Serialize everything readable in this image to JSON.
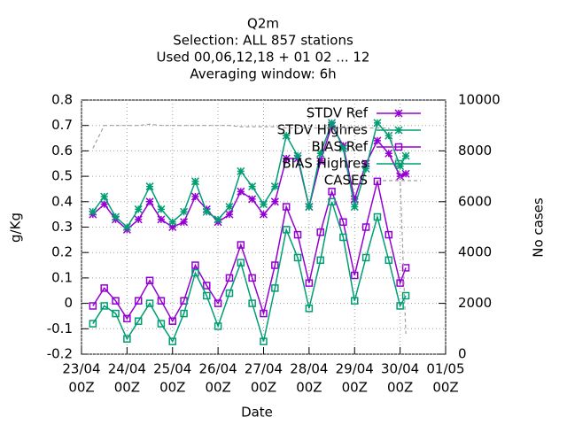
{
  "chart_data": {
    "type": "line",
    "title": [
      "Q2m",
      "Selection: ALL    857 stations",
      "Used  00,06,12,18 + 01 02 ... 12",
      "Averaging window:  6h"
    ],
    "xlabel": "Date",
    "ylabel": "g/Kg",
    "y2label": "No cases",
    "x": [
      6,
      12,
      18,
      24,
      30,
      36,
      42,
      48,
      54,
      60,
      66,
      72,
      78,
      84,
      90,
      96,
      102,
      108,
      114,
      120,
      126,
      132,
      138,
      144,
      150,
      156,
      162,
      168,
      171
    ],
    "xlim": [
      0,
      192
    ],
    "xticks": [
      {
        "value": 0,
        "label": [
          "23/04",
          "00Z"
        ]
      },
      {
        "value": 24,
        "label": [
          "24/04",
          "00Z"
        ]
      },
      {
        "value": 48,
        "label": [
          "25/04",
          "00Z"
        ]
      },
      {
        "value": 72,
        "label": [
          "26/04",
          "00Z"
        ]
      },
      {
        "value": 96,
        "label": [
          "27/04",
          "00Z"
        ]
      },
      {
        "value": 120,
        "label": [
          "28/04",
          "00Z"
        ]
      },
      {
        "value": 144,
        "label": [
          "29/04",
          "00Z"
        ]
      },
      {
        "value": 168,
        "label": [
          "30/04",
          "00Z"
        ]
      },
      {
        "value": 192,
        "label": [
          "01/05",
          "00Z"
        ]
      }
    ],
    "ylim": [
      -0.2,
      0.8
    ],
    "yticks": [
      -0.2,
      -0.1,
      0,
      0.1,
      0.2,
      0.3,
      0.4,
      0.5,
      0.6,
      0.7,
      0.8
    ],
    "y2lim": [
      0,
      10000
    ],
    "y2ticks": [
      0,
      2000,
      4000,
      6000,
      8000,
      10000
    ],
    "grid": true,
    "legend": "top-right",
    "series": [
      {
        "name": "STDV Ref",
        "color": "#9400d3",
        "marker": "star",
        "values": [
          0.35,
          0.39,
          0.33,
          0.29,
          0.33,
          0.4,
          0.33,
          0.3,
          0.32,
          0.42,
          0.37,
          0.32,
          0.35,
          0.44,
          0.41,
          0.35,
          0.4,
          0.57,
          0.57,
          0.38,
          0.56,
          0.7,
          0.62,
          0.41,
          0.55,
          0.64,
          0.59,
          0.5,
          0.51
        ]
      },
      {
        "name": "STDV Highres",
        "color": "#009e73",
        "marker": "star",
        "values": [
          0.36,
          0.42,
          0.34,
          0.3,
          0.37,
          0.46,
          0.37,
          0.32,
          0.36,
          0.48,
          0.36,
          0.33,
          0.38,
          0.52,
          0.46,
          0.39,
          0.46,
          0.66,
          0.58,
          0.38,
          0.59,
          0.71,
          0.61,
          0.38,
          0.53,
          0.71,
          0.66,
          0.54,
          0.58
        ]
      },
      {
        "name": "BIAS Ref",
        "color": "#9400d3",
        "marker": "square",
        "values": [
          -0.01,
          0.06,
          0.01,
          -0.06,
          0.01,
          0.09,
          0.01,
          -0.07,
          0.01,
          0.15,
          0.07,
          0.0,
          0.1,
          0.23,
          0.1,
          -0.04,
          0.15,
          0.38,
          0.27,
          0.08,
          0.28,
          0.44,
          0.32,
          0.11,
          0.3,
          0.48,
          0.27,
          0.08,
          0.14
        ]
      },
      {
        "name": "BIAS Highres",
        "color": "#009e73",
        "marker": "square",
        "values": [
          -0.08,
          -0.01,
          -0.04,
          -0.14,
          -0.07,
          0.0,
          -0.08,
          -0.15,
          -0.04,
          0.12,
          0.03,
          -0.09,
          0.04,
          0.16,
          0.0,
          -0.15,
          0.06,
          0.29,
          0.18,
          -0.02,
          0.17,
          0.4,
          0.26,
          0.01,
          0.18,
          0.34,
          0.17,
          -0.01,
          0.03
        ]
      },
      {
        "name": "CASES",
        "color": "#a0a0a0",
        "marker": "none",
        "dash": true,
        "axis": "y2",
        "values": [
          8100,
          9000,
          9000,
          9000,
          9000,
          9050,
          9000,
          9000,
          9000,
          9000,
          9000,
          9000,
          9000,
          8950,
          8950,
          8950,
          8950,
          8900,
          8900,
          8900,
          8900,
          8900,
          8900,
          8900,
          8900,
          8900,
          8900,
          7000,
          800
        ]
      }
    ]
  }
}
